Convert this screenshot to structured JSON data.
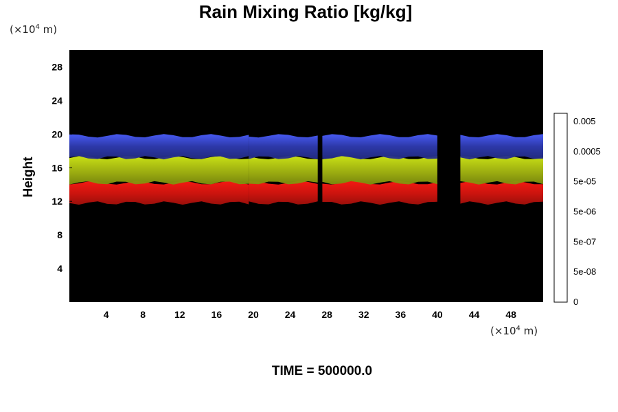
{
  "chart_data": {
    "type": "heatmap",
    "title": "Rain Mixing Ratio [kg/kg]",
    "ylabel": "Height",
    "yunit_pre": "(×10",
    "yunit_exp": "4",
    "yunit_post": " m)",
    "xunit_pre": "(×10",
    "xunit_exp": "4",
    "xunit_post": " m)",
    "footer": "TIME = 500000.0",
    "xlim": [
      0,
      51.5
    ],
    "ylim": [
      0,
      30
    ],
    "xticks": [
      "4",
      "8",
      "12",
      "16",
      "20",
      "24",
      "28",
      "32",
      "36",
      "40",
      "44",
      "48"
    ],
    "yticks": [
      "4",
      "8",
      "12",
      "16",
      "20",
      "24",
      "28"
    ],
    "colorbar": {
      "levels": 20,
      "labels": [
        "0",
        "5e-08",
        "5e-07",
        "5e-06",
        "5e-05",
        "0.0005",
        "0.005"
      ]
    },
    "bands": [
      {
        "name": "red",
        "color": "#d8150f",
        "bottom": 11.8,
        "top": 14.2
      },
      {
        "name": "yellow-green",
        "color": "#a9bc12",
        "bottom": 14.2,
        "top": 17.2
      },
      {
        "name": "blue",
        "color": "#2f3bb0",
        "bottom": 17.2,
        "top": 19.8
      }
    ],
    "segments": [
      {
        "x0": 0,
        "x1": 19.5
      },
      {
        "x0": 19.5,
        "x1": 27
      },
      {
        "x0": 27.5,
        "x1": 40
      },
      {
        "x0": 42.5,
        "x1": 51.5
      }
    ],
    "background": "#000000"
  }
}
